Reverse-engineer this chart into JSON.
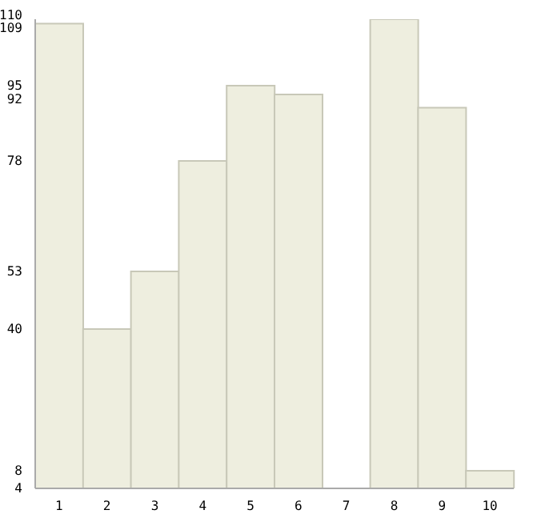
{
  "chart_data": {
    "type": "bar",
    "categories": [
      "1",
      "2",
      "3",
      "4",
      "5",
      "6",
      "7",
      "8",
      "9",
      "10"
    ],
    "values": [
      109,
      40,
      53,
      78,
      95,
      93,
      4,
      110,
      90,
      8
    ],
    "color": "#eeeedf",
    "ylim": [
      4,
      110
    ],
    "yticks": [
      4,
      8,
      40,
      53,
      78,
      92,
      95,
      109,
      110
    ]
  }
}
